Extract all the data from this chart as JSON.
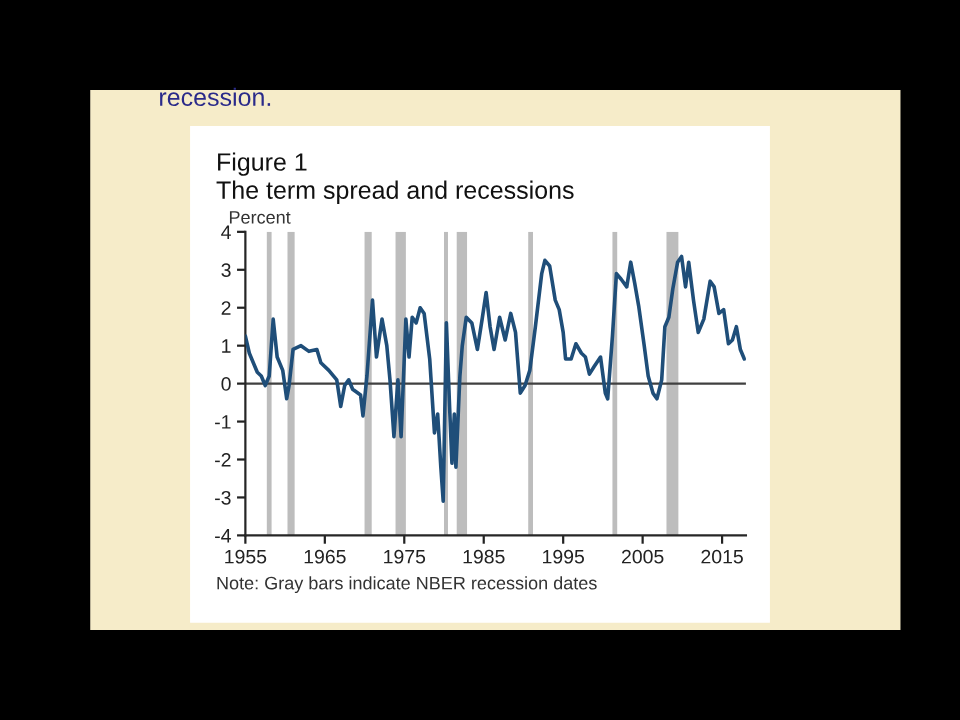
{
  "chart_data": {
    "type": "line",
    "title": "Figure 1",
    "subtitle": "The term spread and recessions",
    "ylabel": "Percent",
    "annotations": [
      "recession.",
      "Note: Gray bars indicate NBER recession dates"
    ],
    "xlim": [
      1955,
      2018
    ],
    "xticks": [
      1955,
      1965,
      1975,
      1985,
      1995,
      2005,
      2015
    ],
    "ylim": [
      -4,
      4
    ],
    "yticks": [
      -4,
      -3,
      -2,
      -1,
      0,
      1,
      2,
      3,
      4
    ],
    "grid": false,
    "legend": false,
    "marker": "none",
    "line_style": "solid",
    "ref_lines": [
      {
        "axis": "y",
        "value": 0,
        "label": null,
        "color": "#404040",
        "line_style": "solid"
      }
    ],
    "bands": [
      {
        "axis": "x",
        "from": 1957.7,
        "to": 1958.3,
        "label": null,
        "color": "#bdbdbd"
      },
      {
        "axis": "x",
        "from": 1960.3,
        "to": 1961.2,
        "label": null,
        "color": "#bdbdbd"
      },
      {
        "axis": "x",
        "from": 1970.0,
        "to": 1970.9,
        "label": null,
        "color": "#bdbdbd"
      },
      {
        "axis": "x",
        "from": 1973.9,
        "to": 1975.2,
        "label": null,
        "color": "#bdbdbd"
      },
      {
        "axis": "x",
        "from": 1980.0,
        "to": 1980.5,
        "label": null,
        "color": "#bdbdbd"
      },
      {
        "axis": "x",
        "from": 1981.6,
        "to": 1982.9,
        "label": null,
        "color": "#bdbdbd"
      },
      {
        "axis": "x",
        "from": 1990.6,
        "to": 1991.2,
        "label": null,
        "color": "#bdbdbd"
      },
      {
        "axis": "x",
        "from": 2001.2,
        "to": 2001.8,
        "label": null,
        "color": "#bdbdbd"
      },
      {
        "axis": "x",
        "from": 2008.0,
        "to": 2009.5,
        "label": null,
        "color": "#bdbdbd"
      }
    ],
    "series": [
      {
        "color": "#1f4e79",
        "x": [
          1955.0,
          1955.5,
          1956.5,
          1957.0,
          1957.5,
          1958.0,
          1958.5,
          1959.0,
          1959.7,
          1960.2,
          1960.5,
          1961.0,
          1962.0,
          1963.0,
          1964.0,
          1964.5,
          1965.5,
          1966.5,
          1967.0,
          1967.5,
          1968.0,
          1968.5,
          1969.5,
          1969.8,
          1970.3,
          1971.0,
          1971.5,
          1972.2,
          1972.8,
          1973.2,
          1973.7,
          1974.2,
          1974.6,
          1975.2,
          1975.6,
          1976.0,
          1976.5,
          1977.0,
          1977.5,
          1978.2,
          1978.8,
          1979.2,
          1979.6,
          1979.9,
          1980.3,
          1980.7,
          1981.0,
          1981.3,
          1981.5,
          1982.0,
          1982.3,
          1982.8,
          1983.5,
          1984.2,
          1984.8,
          1985.3,
          1985.8,
          1986.3,
          1987.0,
          1987.7,
          1988.4,
          1989.0,
          1989.6,
          1990.2,
          1990.8,
          1991.5,
          1992.3,
          1992.7,
          1993.3,
          1994.0,
          1994.5,
          1995.0,
          1995.3,
          1996.0,
          1996.6,
          1997.3,
          1997.8,
          1998.3,
          1998.9,
          1999.7,
          2000.3,
          2000.6,
          2001.2,
          2001.7,
          2002.3,
          2003.0,
          2003.5,
          2004.0,
          2004.5,
          2005.2,
          2005.7,
          2006.3,
          2006.8,
          2007.4,
          2007.8,
          2008.3,
          2008.8,
          2009.4,
          2009.9,
          2010.4,
          2010.8,
          2011.4,
          2012.0,
          2012.7,
          2013.5,
          2014.0,
          2014.6,
          2015.2,
          2015.8,
          2016.3,
          2016.8,
          2017.3,
          2017.8
        ],
        "values": [
          1.25,
          0.8,
          0.3,
          0.2,
          -0.05,
          0.2,
          1.7,
          0.7,
          0.35,
          -0.4,
          -0.05,
          0.9,
          1.0,
          0.85,
          0.9,
          0.55,
          0.35,
          0.1,
          -0.6,
          -0.05,
          0.1,
          -0.15,
          -0.3,
          -0.85,
          0.2,
          2.2,
          0.7,
          1.7,
          1.0,
          0.1,
          -1.4,
          0.1,
          -1.4,
          1.7,
          0.7,
          1.75,
          1.6,
          2.0,
          1.85,
          0.65,
          -1.3,
          -0.8,
          -2.2,
          -3.1,
          1.6,
          -0.6,
          -2.1,
          -0.8,
          -2.2,
          0.2,
          1.0,
          1.75,
          1.6,
          0.9,
          1.7,
          2.4,
          1.5,
          0.9,
          1.75,
          1.15,
          1.85,
          1.35,
          -0.25,
          -0.05,
          0.35,
          1.5,
          2.9,
          3.25,
          3.1,
          2.2,
          1.95,
          1.35,
          0.65,
          0.65,
          1.05,
          0.8,
          0.7,
          0.25,
          0.45,
          0.7,
          -0.25,
          -0.4,
          1.25,
          2.9,
          2.75,
          2.55,
          3.2,
          2.65,
          2.05,
          1.0,
          0.2,
          -0.25,
          -0.4,
          0.1,
          1.5,
          1.75,
          2.5,
          3.2,
          3.35,
          2.55,
          3.2,
          2.2,
          1.35,
          1.7,
          2.7,
          2.55,
          1.85,
          1.95,
          1.05,
          1.15,
          1.5,
          0.9,
          0.65
        ]
      }
    ]
  }
}
